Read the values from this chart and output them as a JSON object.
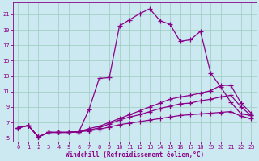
{
  "xlabel": "Windchill (Refroidissement éolien,°C)",
  "bg_color": "#cce8f0",
  "line_color": "#880088",
  "grid_color": "#99ccbb",
  "xlim": [
    -0.5,
    23.5
  ],
  "ylim": [
    4.5,
    22.5
  ],
  "xticks": [
    0,
    1,
    2,
    3,
    4,
    5,
    6,
    7,
    8,
    9,
    10,
    11,
    12,
    13,
    14,
    15,
    16,
    17,
    18,
    19,
    20,
    21,
    22,
    23
  ],
  "yticks": [
    5,
    7,
    9,
    11,
    13,
    15,
    17,
    19,
    21
  ],
  "series": [
    [
      6.3,
      6.6,
      5.1,
      5.7,
      5.7,
      5.7,
      5.8,
      8.7,
      12.7,
      12.8,
      19.5,
      20.3,
      21.1,
      21.7,
      20.2,
      19.7,
      17.5,
      17.7,
      18.8,
      13.4,
      11.6,
      9.6,
      8.1,
      7.9
    ],
    [
      6.3,
      6.6,
      5.1,
      5.7,
      5.7,
      5.7,
      5.8,
      6.2,
      6.5,
      7.0,
      7.5,
      8.0,
      8.5,
      9.0,
      9.5,
      10.0,
      10.3,
      10.5,
      10.8,
      11.1,
      11.8,
      11.8,
      9.5,
      8.2
    ],
    [
      6.3,
      6.6,
      5.1,
      5.7,
      5.7,
      5.7,
      5.8,
      6.0,
      6.3,
      6.8,
      7.3,
      7.7,
      8.0,
      8.4,
      8.8,
      9.1,
      9.4,
      9.5,
      9.8,
      10.0,
      10.3,
      10.5,
      9.0,
      7.9
    ],
    [
      6.3,
      6.6,
      5.1,
      5.7,
      5.7,
      5.7,
      5.8,
      5.9,
      6.1,
      6.4,
      6.7,
      6.9,
      7.1,
      7.3,
      7.5,
      7.7,
      7.9,
      8.0,
      8.1,
      8.2,
      8.3,
      8.4,
      7.8,
      7.5
    ]
  ],
  "marker": "+",
  "markersize": 4,
  "linewidth": 0.9,
  "markeredgewidth": 0.9
}
